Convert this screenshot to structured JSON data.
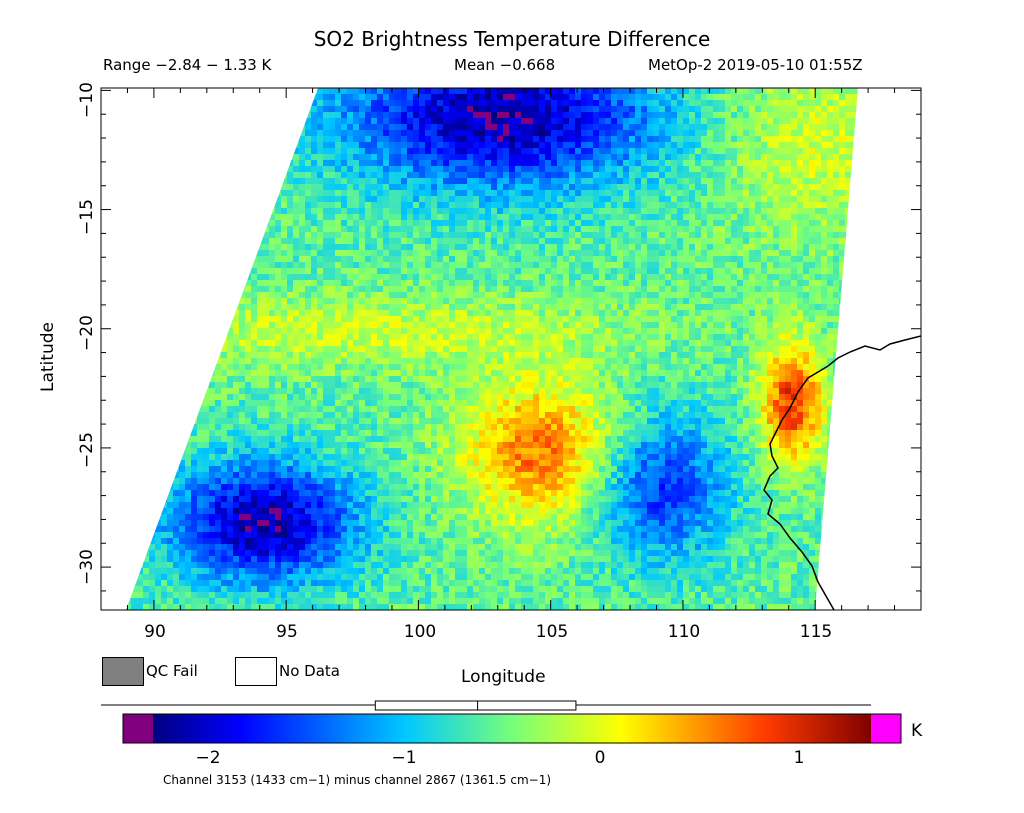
{
  "title": "SO2 Brightness Temperature Difference",
  "header": {
    "range": "Range −2.84 − 1.33 K",
    "mean": "Mean −0.668",
    "satellite_time": "MetOp-2 2019-05-10 01:55Z"
  },
  "axes": {
    "x_label": "Longitude",
    "y_label": "Latitude",
    "x_ticks": [
      "90",
      "95",
      "100",
      "105",
      "110",
      "115"
    ],
    "y_ticks": [
      "−10",
      "−15",
      "−20",
      "−25",
      "−30"
    ],
    "x_range": [
      88,
      119
    ],
    "y_range": [
      -31.8,
      -9.9
    ]
  },
  "legend": {
    "qc_fail": "QC Fail",
    "no_data": "No Data",
    "qc_fail_color": "#808080",
    "no_data_color": "#ffffff"
  },
  "colorbar": {
    "ticks": [
      "−2",
      "−1",
      "0",
      "1"
    ],
    "tick_values": [
      -2,
      -1,
      0,
      1
    ],
    "unit": "K",
    "min": -2.3,
    "max": 1.35,
    "under_color": "#800080",
    "over_color": "#ff00ff",
    "boxplot": {
      "min": -2.84,
      "q1": -1.17,
      "median": -0.65,
      "q3": -0.15,
      "max": 1.33
    }
  },
  "footer": {
    "channel_note": "Channel 3153 (1433 cm−1) minus channel 2867 (1361.5 cm−1)"
  }
}
